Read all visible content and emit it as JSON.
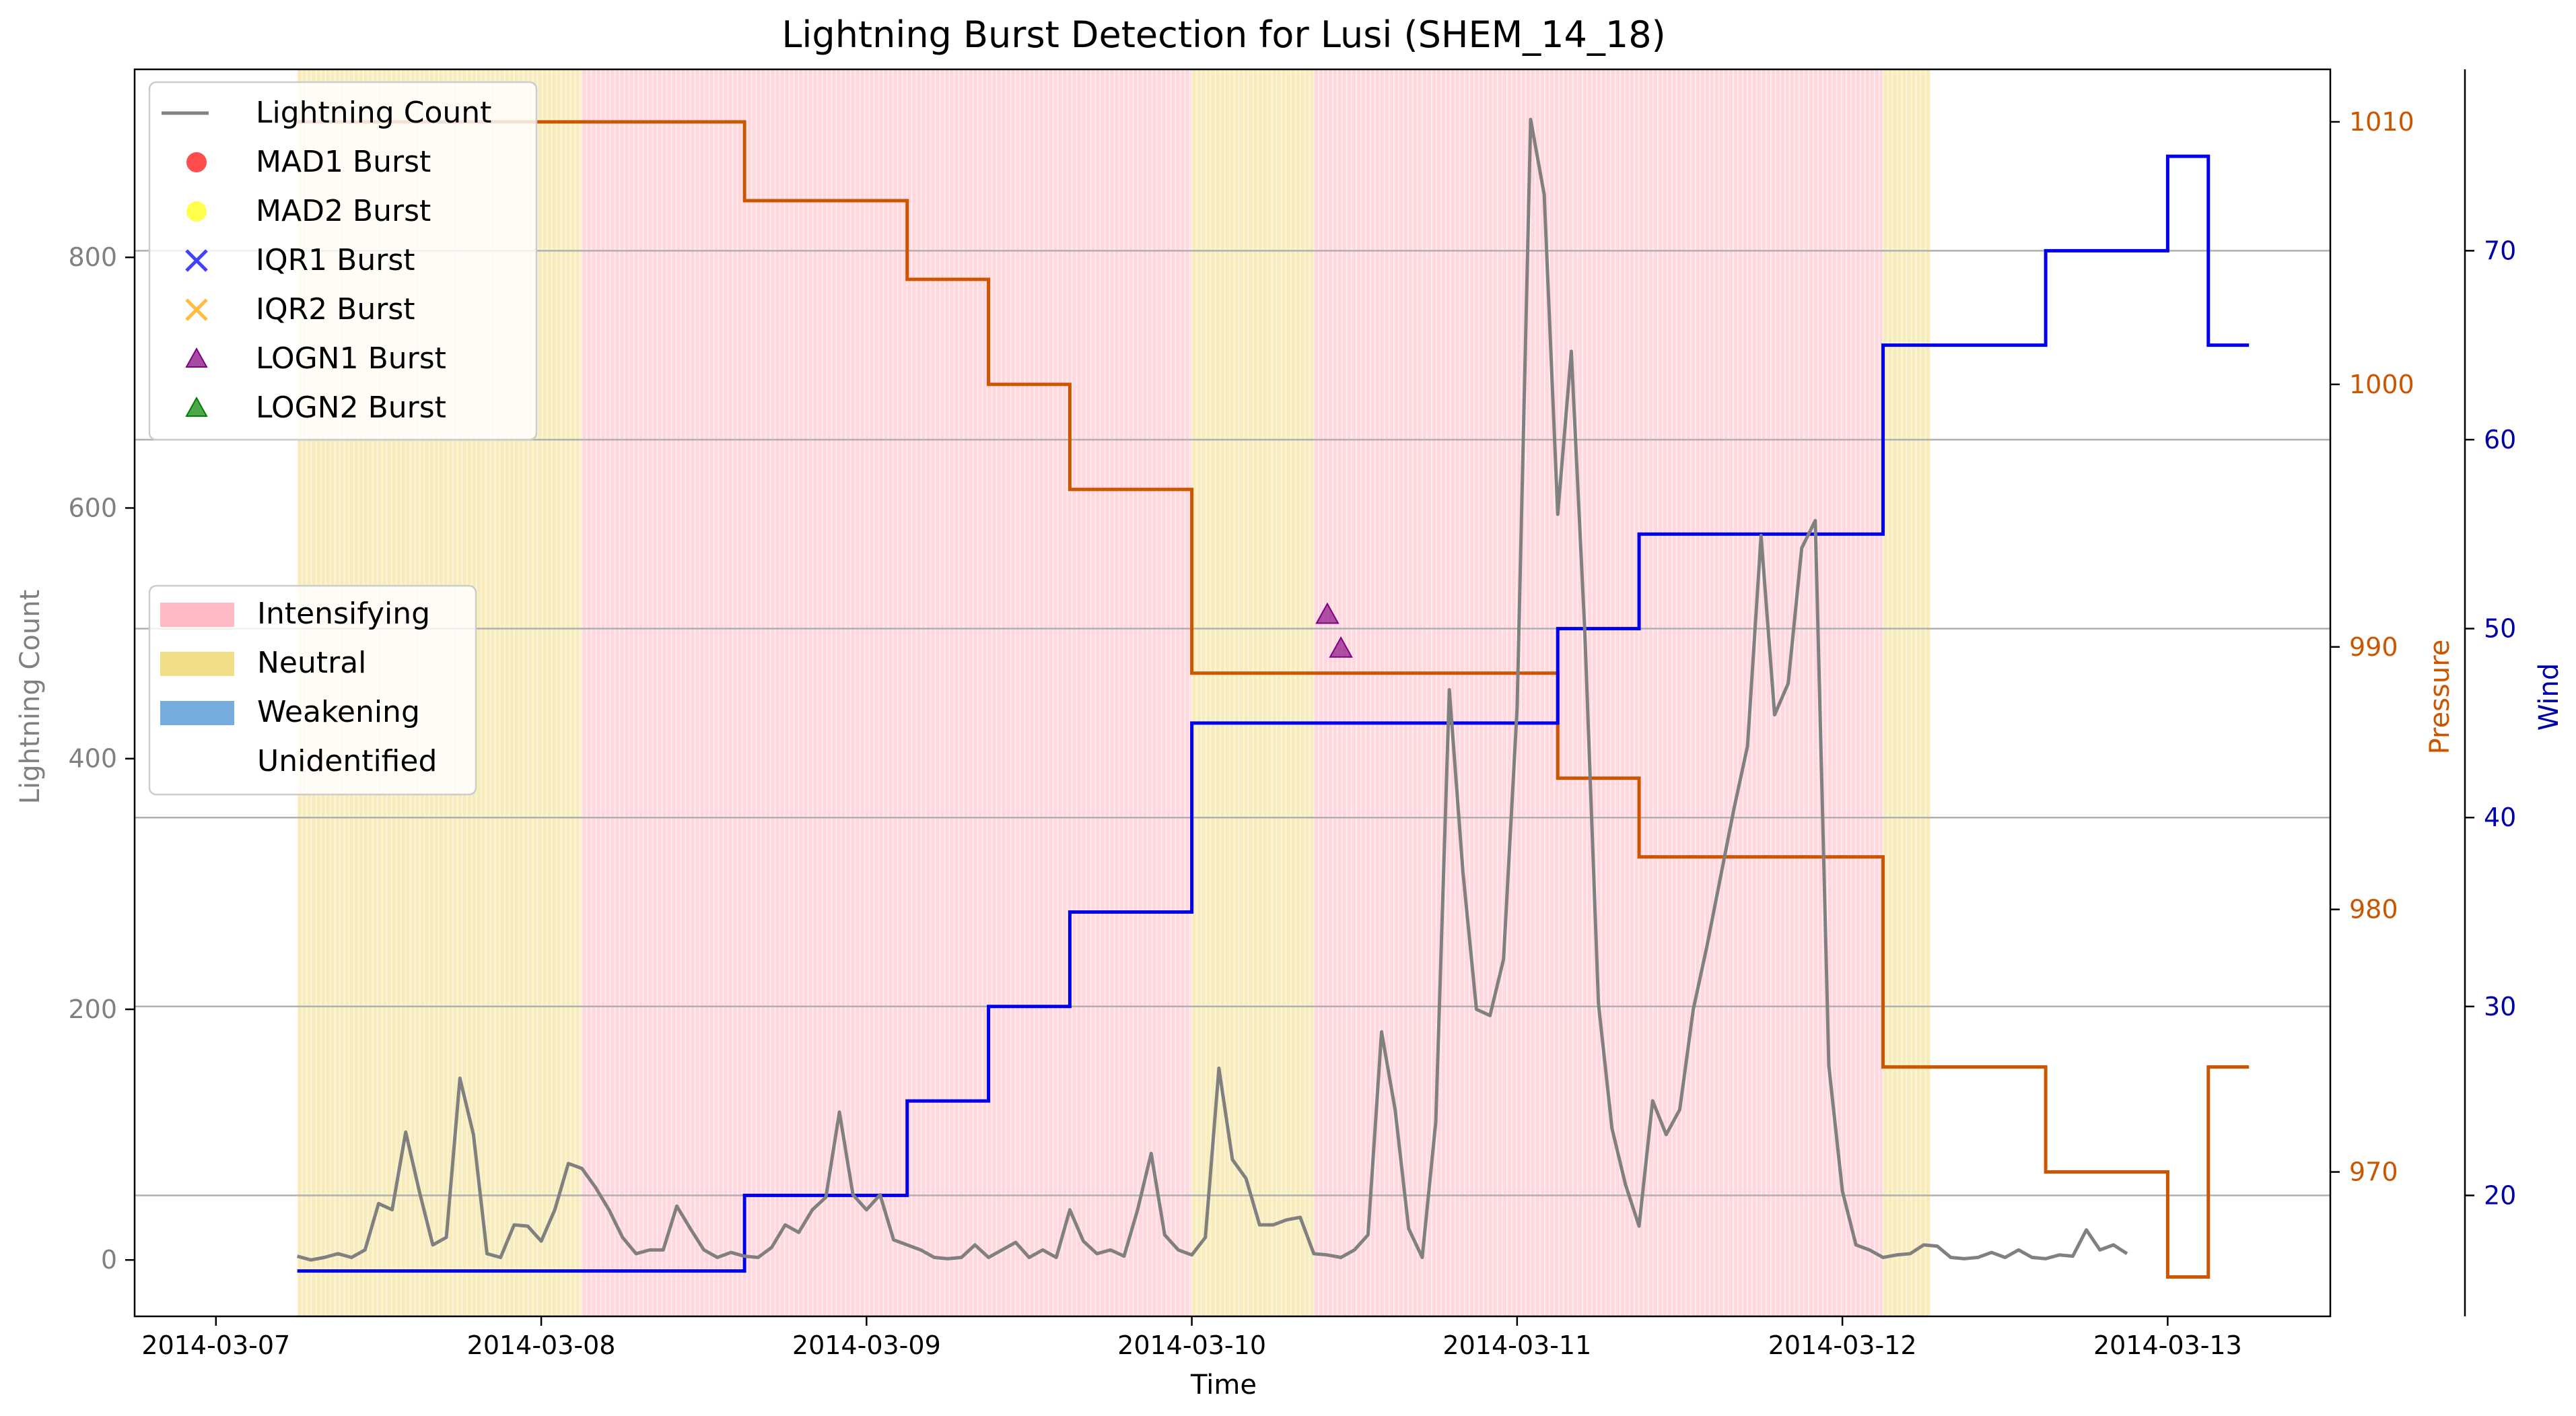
{
  "chart_data": {
    "type": "line",
    "title": "Lightning Burst Detection for Lusi (SHEM_14_18)",
    "xlabel": "Time",
    "ylabel": "Lightning Count",
    "y2label": "Pressure",
    "y3label": "Wind",
    "x_range": [
      "2014-03-06T18:00",
      "2014-03-13T12:00"
    ],
    "x_ticks": [
      "2014-03-07",
      "2014-03-08",
      "2014-03-09",
      "2014-03-10",
      "2014-03-11",
      "2014-03-12",
      "2014-03-13"
    ],
    "ylim": [
      -45,
      950
    ],
    "y_ticks": [
      0,
      200,
      400,
      600,
      800
    ],
    "y2lim": [
      964.5,
      1012.0
    ],
    "y2_ticks": [
      970,
      980,
      990,
      1000,
      1010
    ],
    "y3lim": [
      13.6,
      79.6
    ],
    "y3_ticks": [
      20,
      30,
      40,
      50,
      60,
      70
    ],
    "grid": "horizontal lines at wind ticks",
    "colors": {
      "lightning": "#808080",
      "pressure": "#cc5500",
      "wind": "#0000ee",
      "intensifying": "#ffb6c1",
      "neutral": "#f0dc82",
      "weakening": "#6fa8dc",
      "grid": "#b0b0b0"
    },
    "legend_series": {
      "lightning_label": "Lightning Count",
      "markers": [
        {
          "label": "MAD1 Burst",
          "shape": "circle",
          "color": "#ff0000"
        },
        {
          "label": "MAD2 Burst",
          "shape": "circle",
          "color": "#ffff00"
        },
        {
          "label": "IQR1 Burst",
          "shape": "x",
          "color": "#0000ff"
        },
        {
          "label": "IQR2 Burst",
          "shape": "x",
          "color": "#ffa500"
        },
        {
          "label": "LOGN1 Burst",
          "shape": "triangle",
          "color": "#800080"
        },
        {
          "label": "LOGN2 Burst",
          "shape": "triangle",
          "color": "#008000"
        }
      ],
      "placement": "upper-left"
    },
    "legend_phases": {
      "items": [
        {
          "label": "Intensifying",
          "color": "#ffb6c1"
        },
        {
          "label": "Neutral",
          "color": "#f0dc82"
        },
        {
          "label": "Weakening",
          "color": "#6fa8dc"
        },
        {
          "label": "Unidentified",
          "color": "#ffffff"
        }
      ],
      "placement": "center-left"
    },
    "phases": [
      {
        "phase": "Neutral",
        "start": "2014-03-07T06:00",
        "end": "2014-03-08T03:00"
      },
      {
        "phase": "Intensifying",
        "start": "2014-03-08T03:00",
        "end": "2014-03-10T00:00"
      },
      {
        "phase": "Neutral",
        "start": "2014-03-10T00:00",
        "end": "2014-03-10T09:00"
      },
      {
        "phase": "Intensifying",
        "start": "2014-03-10T09:00",
        "end": "2014-03-12T03:00"
      },
      {
        "phase": "Neutral",
        "start": "2014-03-12T03:00",
        "end": "2014-03-12T06:30"
      }
    ],
    "pressure": {
      "name": "Pressure",
      "step_points": [
        [
          "2014-03-07T06:00",
          1010
        ],
        [
          "2014-03-08T15:00",
          1007
        ],
        [
          "2014-03-09T03:00",
          1004
        ],
        [
          "2014-03-09T09:00",
          1000
        ],
        [
          "2014-03-09T15:00",
          996
        ],
        [
          "2014-03-10T00:00",
          989
        ],
        [
          "2014-03-11T03:00",
          985
        ],
        [
          "2014-03-11T09:00",
          982
        ],
        [
          "2014-03-12T03:00",
          974
        ],
        [
          "2014-03-12T15:00",
          970
        ],
        [
          "2014-03-13T00:00",
          966
        ],
        [
          "2014-03-13T03:00",
          974
        ],
        [
          "2014-03-13T06:00",
          974
        ]
      ]
    },
    "wind": {
      "name": "Wind",
      "step_points": [
        [
          "2014-03-07T06:00",
          16
        ],
        [
          "2014-03-08T15:00",
          20
        ],
        [
          "2014-03-09T03:00",
          25
        ],
        [
          "2014-03-09T09:00",
          30
        ],
        [
          "2014-03-09T15:00",
          35
        ],
        [
          "2014-03-10T00:00",
          45
        ],
        [
          "2014-03-11T03:00",
          50
        ],
        [
          "2014-03-11T09:00",
          55
        ],
        [
          "2014-03-12T03:00",
          65
        ],
        [
          "2014-03-12T15:00",
          70
        ],
        [
          "2014-03-13T00:00",
          75
        ],
        [
          "2014-03-13T03:00",
          65
        ],
        [
          "2014-03-13T06:00",
          65
        ]
      ]
    },
    "lightning": {
      "name": "Lightning Count",
      "points": [
        [
          "2014-03-07T06:00",
          3
        ],
        [
          "2014-03-07T07:00",
          0
        ],
        [
          "2014-03-07T08:00",
          2
        ],
        [
          "2014-03-07T09:00",
          5
        ],
        [
          "2014-03-07T10:00",
          2
        ],
        [
          "2014-03-07T11:00",
          8
        ],
        [
          "2014-03-07T12:00",
          45
        ],
        [
          "2014-03-07T13:00",
          40
        ],
        [
          "2014-03-07T14:00",
          102
        ],
        [
          "2014-03-07T15:00",
          55
        ],
        [
          "2014-03-07T16:00",
          12
        ],
        [
          "2014-03-07T17:00",
          18
        ],
        [
          "2014-03-07T18:00",
          145
        ],
        [
          "2014-03-07T19:00",
          100
        ],
        [
          "2014-03-07T20:00",
          5
        ],
        [
          "2014-03-07T21:00",
          2
        ],
        [
          "2014-03-07T22:00",
          28
        ],
        [
          "2014-03-07T23:00",
          27
        ],
        [
          "2014-03-08T00:00",
          15
        ],
        [
          "2014-03-08T01:00",
          40
        ],
        [
          "2014-03-08T02:00",
          77
        ],
        [
          "2014-03-08T03:00",
          73
        ],
        [
          "2014-03-08T04:00",
          58
        ],
        [
          "2014-03-08T05:00",
          40
        ],
        [
          "2014-03-08T06:00",
          18
        ],
        [
          "2014-03-08T07:00",
          5
        ],
        [
          "2014-03-08T08:00",
          8
        ],
        [
          "2014-03-08T09:00",
          8
        ],
        [
          "2014-03-08T10:00",
          43
        ],
        [
          "2014-03-08T11:00",
          25
        ],
        [
          "2014-03-08T12:00",
          8
        ],
        [
          "2014-03-08T13:00",
          2
        ],
        [
          "2014-03-08T14:00",
          6
        ],
        [
          "2014-03-08T15:00",
          3
        ],
        [
          "2014-03-08T16:00",
          2
        ],
        [
          "2014-03-08T17:00",
          10
        ],
        [
          "2014-03-08T18:00",
          28
        ],
        [
          "2014-03-08T19:00",
          22
        ],
        [
          "2014-03-08T20:00",
          40
        ],
        [
          "2014-03-08T21:00",
          50
        ],
        [
          "2014-03-08T22:00",
          118
        ],
        [
          "2014-03-08T23:00",
          52
        ],
        [
          "2014-03-09T00:00",
          40
        ],
        [
          "2014-03-09T01:00",
          52
        ],
        [
          "2014-03-09T02:00",
          16
        ],
        [
          "2014-03-09T03:00",
          12
        ],
        [
          "2014-03-09T04:00",
          8
        ],
        [
          "2014-03-09T05:00",
          2
        ],
        [
          "2014-03-09T06:00",
          1
        ],
        [
          "2014-03-09T07:00",
          2
        ],
        [
          "2014-03-09T08:00",
          12
        ],
        [
          "2014-03-09T09:00",
          2
        ],
        [
          "2014-03-09T10:00",
          8
        ],
        [
          "2014-03-09T11:00",
          14
        ],
        [
          "2014-03-09T12:00",
          2
        ],
        [
          "2014-03-09T13:00",
          8
        ],
        [
          "2014-03-09T14:00",
          2
        ],
        [
          "2014-03-09T15:00",
          40
        ],
        [
          "2014-03-09T16:00",
          15
        ],
        [
          "2014-03-09T17:00",
          5
        ],
        [
          "2014-03-09T18:00",
          8
        ],
        [
          "2014-03-09T19:00",
          3
        ],
        [
          "2014-03-09T20:00",
          40
        ],
        [
          "2014-03-09T21:00",
          85
        ],
        [
          "2014-03-09T22:00",
          20
        ],
        [
          "2014-03-09T23:00",
          8
        ],
        [
          "2014-03-10T00:00",
          4
        ],
        [
          "2014-03-10T01:00",
          18
        ],
        [
          "2014-03-10T02:00",
          153
        ],
        [
          "2014-03-10T03:00",
          80
        ],
        [
          "2014-03-10T04:00",
          65
        ],
        [
          "2014-03-10T05:00",
          28
        ],
        [
          "2014-03-10T06:00",
          28
        ],
        [
          "2014-03-10T07:00",
          32
        ],
        [
          "2014-03-10T08:00",
          34
        ],
        [
          "2014-03-10T09:00",
          5
        ],
        [
          "2014-03-10T10:00",
          4
        ],
        [
          "2014-03-10T11:00",
          2
        ],
        [
          "2014-03-10T12:00",
          8
        ],
        [
          "2014-03-10T13:00",
          20
        ],
        [
          "2014-03-10T14:00",
          182
        ],
        [
          "2014-03-10T15:00",
          120
        ],
        [
          "2014-03-10T16:00",
          25
        ],
        [
          "2014-03-10T17:00",
          2
        ],
        [
          "2014-03-10T18:00",
          110
        ],
        [
          "2014-03-10T19:00",
          455
        ],
        [
          "2014-03-10T20:00",
          310
        ],
        [
          "2014-03-10T21:00",
          200
        ],
        [
          "2014-03-10T22:00",
          195
        ],
        [
          "2014-03-10T23:00",
          240
        ],
        [
          "2014-03-11T00:00",
          440
        ],
        [
          "2014-03-11T01:00",
          910
        ],
        [
          "2014-03-11T02:00",
          850
        ],
        [
          "2014-03-11T03:00",
          595
        ],
        [
          "2014-03-11T04:00",
          725
        ],
        [
          "2014-03-11T05:00",
          500
        ],
        [
          "2014-03-11T06:00",
          205
        ],
        [
          "2014-03-11T07:00",
          105
        ],
        [
          "2014-03-11T08:00",
          60
        ],
        [
          "2014-03-11T09:00",
          27
        ],
        [
          "2014-03-11T10:00",
          127
        ],
        [
          "2014-03-11T11:00",
          100
        ],
        [
          "2014-03-11T12:00",
          120
        ],
        [
          "2014-03-11T13:00",
          200
        ],
        [
          "2014-03-11T14:00",
          250
        ],
        [
          "2014-03-11T15:00",
          305
        ],
        [
          "2014-03-11T16:00",
          360
        ],
        [
          "2014-03-11T17:00",
          410
        ],
        [
          "2014-03-11T18:00",
          578
        ],
        [
          "2014-03-11T19:00",
          435
        ],
        [
          "2014-03-11T20:00",
          460
        ],
        [
          "2014-03-11T21:00",
          568
        ],
        [
          "2014-03-11T22:00",
          590
        ],
        [
          "2014-03-11T23:00",
          155
        ],
        [
          "2014-03-12T00:00",
          55
        ],
        [
          "2014-03-12T01:00",
          12
        ],
        [
          "2014-03-12T02:00",
          8
        ],
        [
          "2014-03-12T03:00",
          2
        ],
        [
          "2014-03-12T04:00",
          4
        ],
        [
          "2014-03-12T05:00",
          5
        ],
        [
          "2014-03-12T06:00",
          12
        ],
        [
          "2014-03-12T07:00",
          11
        ],
        [
          "2014-03-12T08:00",
          2
        ],
        [
          "2014-03-12T09:00",
          1
        ],
        [
          "2014-03-12T10:00",
          2
        ],
        [
          "2014-03-12T11:00",
          6
        ],
        [
          "2014-03-12T12:00",
          2
        ],
        [
          "2014-03-12T13:00",
          8
        ],
        [
          "2014-03-12T14:00",
          2
        ],
        [
          "2014-03-12T15:00",
          1
        ],
        [
          "2014-03-12T16:00",
          4
        ],
        [
          "2014-03-12T17:00",
          3
        ],
        [
          "2014-03-12T18:00",
          24
        ],
        [
          "2014-03-12T19:00",
          8
        ],
        [
          "2014-03-12T20:00",
          12
        ],
        [
          "2014-03-12T21:00",
          5
        ]
      ]
    },
    "bursts": [
      {
        "series": "LOGN1 Burst",
        "x": "2014-03-10T10:00",
        "y": 515
      },
      {
        "series": "LOGN1 Burst",
        "x": "2014-03-10T11:00",
        "y": 488
      }
    ]
  }
}
